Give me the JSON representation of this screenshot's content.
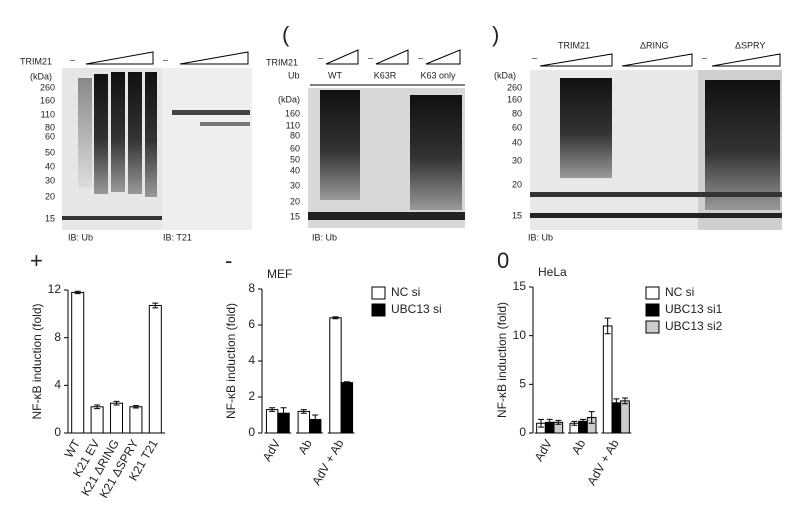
{
  "panel_labels": [
    "(",
    ")",
    "+",
    "-",
    "0"
  ],
  "blot_a": {
    "treatment": "TRIM21",
    "minus": [
      "–",
      "–"
    ],
    "unit": "(kDa)",
    "mw": [
      260,
      160,
      110,
      80,
      60,
      50,
      40,
      30,
      20,
      15
    ],
    "ib": [
      "IB: Ub",
      "IB: T21"
    ]
  },
  "blot_b": {
    "treatment": "TRIM21",
    "ub": "Ub",
    "minus": [
      "–",
      "–",
      "–"
    ],
    "groups": [
      "WT",
      "K63R",
      "K63 only"
    ],
    "unit": "(kDa)",
    "mw": [
      160,
      110,
      80,
      60,
      50,
      40,
      30,
      20,
      15
    ],
    "ib": "IB: Ub"
  },
  "blot_c": {
    "groups": [
      "TRIM21",
      "ΔRING",
      "ΔSPRY"
    ],
    "minus": [
      "–",
      "–"
    ],
    "unit": "(kDa)",
    "mw": [
      260,
      160,
      80,
      60,
      40,
      30,
      20,
      15
    ],
    "ib": "IB: Ub"
  },
  "chart_data": [
    {
      "type": "bar",
      "y_label": "NF-κB induction (fold)",
      "categories": [
        "WT",
        "K21 EV",
        "K21 ΔRING",
        "K21 ΔSPRY",
        "K21 T21"
      ],
      "values": [
        11.8,
        2.2,
        2.5,
        2.2,
        10.7
      ],
      "errors": [
        0.1,
        0.15,
        0.15,
        0.1,
        0.2
      ],
      "color": "#ffffff",
      "ylim": [
        0,
        12
      ],
      "yticks": [
        0,
        4,
        8,
        12
      ]
    },
    {
      "type": "bar",
      "title": "MEF",
      "y_label": "NF-κB induction (fold)",
      "categories": [
        "AdV",
        "Ab",
        "AdV + Ab"
      ],
      "series": [
        {
          "name": "NC si",
          "color": "#ffffff",
          "values": [
            1.3,
            1.2,
            6.4
          ],
          "errors": [
            0.1,
            0.1,
            0.05
          ]
        },
        {
          "name": "UBC13 si",
          "color": "#000000",
          "values": [
            1.1,
            0.75,
            2.8
          ],
          "errors": [
            0.3,
            0.25,
            0.05
          ]
        }
      ],
      "ylim": [
        0,
        8
      ],
      "yticks": [
        0,
        2,
        4,
        6,
        8
      ]
    },
    {
      "type": "bar",
      "title": "HeLa",
      "y_label": "NF-κB induction (fold)",
      "categories": [
        "AdV",
        "Ab",
        "AdV + Ab"
      ],
      "series": [
        {
          "name": "NC si",
          "color": "#ffffff",
          "values": [
            1.0,
            1.0,
            11.0
          ],
          "errors": [
            0.4,
            0.2,
            0.8
          ]
        },
        {
          "name": "UBC13 si1",
          "color": "#000000",
          "values": [
            1.1,
            1.2,
            3.1
          ],
          "errors": [
            0.3,
            0.2,
            0.4
          ]
        },
        {
          "name": "UBC13 si2",
          "color": "#cccccc",
          "values": [
            1.1,
            1.6,
            3.3
          ],
          "errors": [
            0.2,
            0.6,
            0.3
          ]
        }
      ],
      "ylim": [
        0,
        15
      ],
      "yticks": [
        0,
        5,
        10,
        15
      ]
    }
  ]
}
